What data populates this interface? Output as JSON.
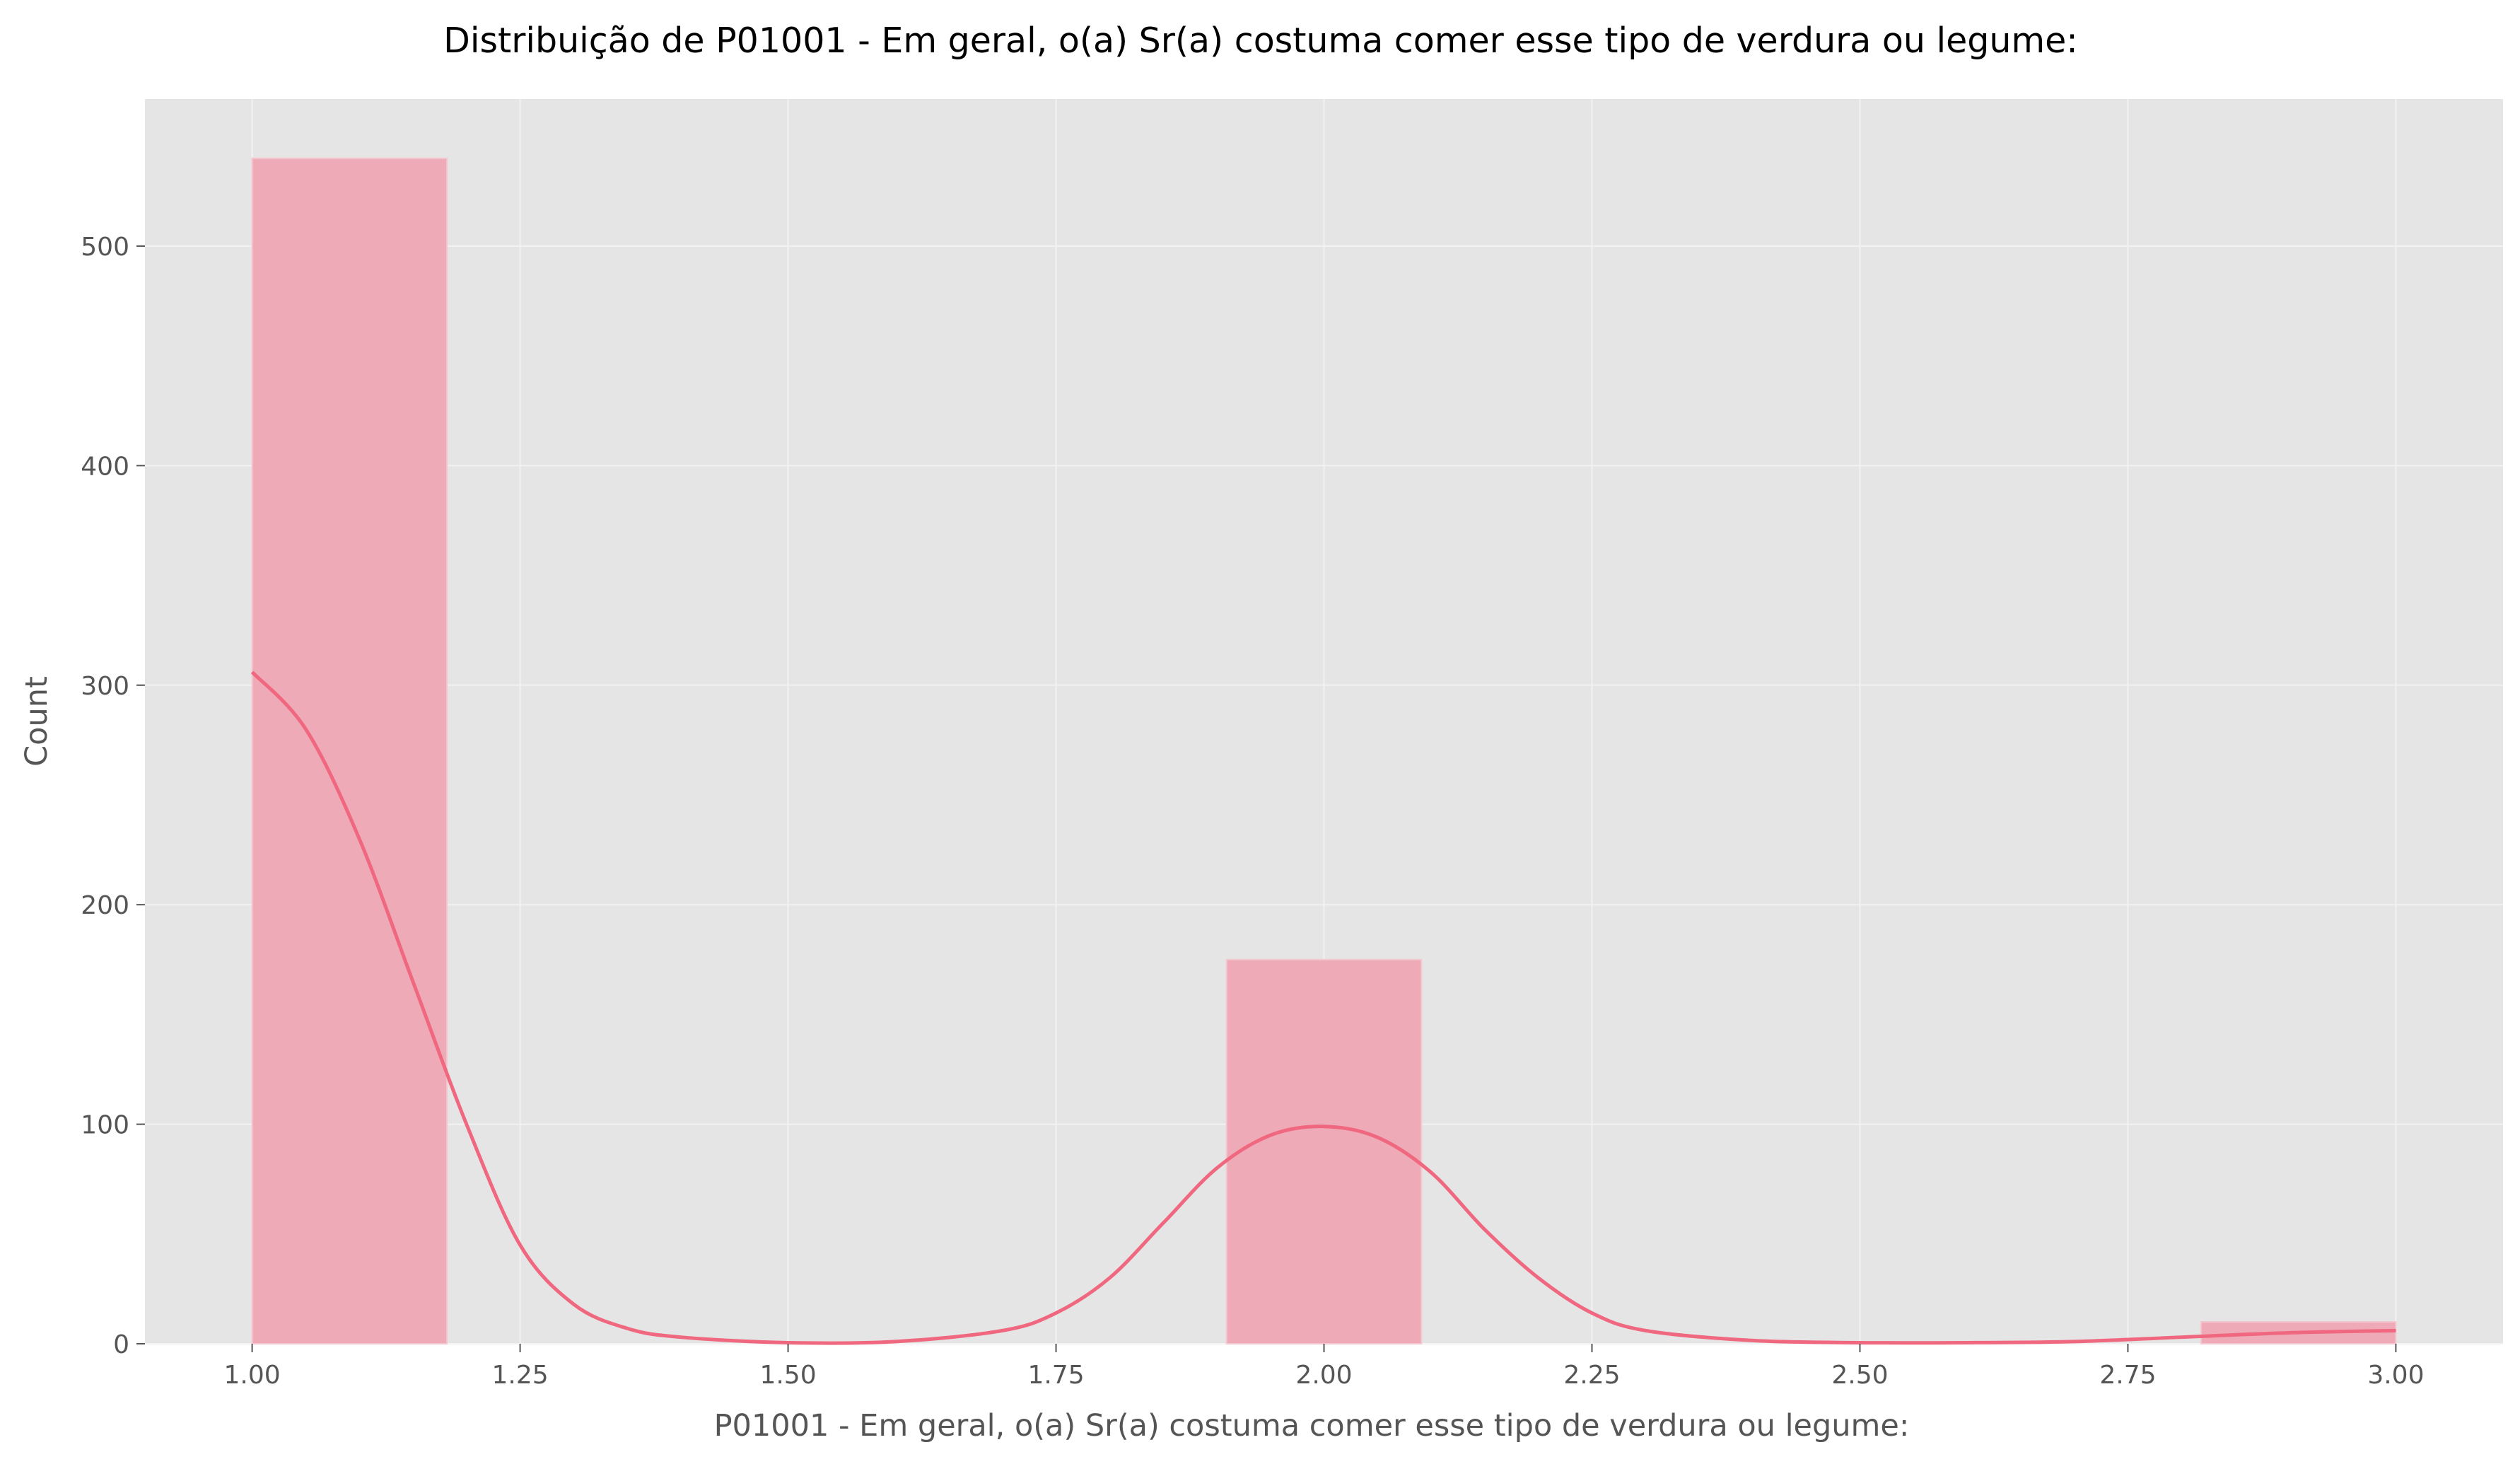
{
  "chart_data": {
    "type": "bar",
    "title": "Distribuição de P01001 - Em geral, o(a) Sr(a) costuma comer esse tipo de verdura ou legume:",
    "xlabel": "P01001 - Em geral, o(a) Sr(a) costuma comer esse tipo de verdura ou legume:",
    "ylabel": "Count",
    "xlim": [
      0.9,
      3.1
    ],
    "ylim": [
      0,
      567
    ],
    "x_ticks": [
      "1.00",
      "1.25",
      "1.50",
      "1.75",
      "2.00",
      "2.25",
      "2.50",
      "2.75",
      "3.00"
    ],
    "y_ticks": [
      "0",
      "100",
      "200",
      "300",
      "400",
      "500"
    ],
    "grid": true,
    "bars": [
      {
        "x_start": 1.0,
        "x_end": 1.1818,
        "count": 540
      },
      {
        "x_start": 1.9091,
        "x_end": 2.0909,
        "count": 175
      },
      {
        "x_start": 2.8182,
        "x_end": 3.0,
        "count": 10
      }
    ],
    "kde_curve": {
      "x": [
        1.0,
        1.05,
        1.1,
        1.15,
        1.2,
        1.25,
        1.3,
        1.35,
        1.4,
        1.5,
        1.6,
        1.7,
        1.75,
        1.8,
        1.85,
        1.9,
        1.95,
        2.0,
        2.05,
        2.1,
        2.15,
        2.2,
        2.25,
        2.3,
        2.4,
        2.5,
        2.6,
        2.7,
        2.8,
        2.9,
        3.0
      ],
      "y": [
        306,
        280,
        230,
        165,
        100,
        45,
        18,
        7,
        3,
        0.5,
        1,
        6,
        14,
        30,
        55,
        80,
        95,
        99,
        94,
        78,
        52,
        30,
        14,
        6,
        1.5,
        0.5,
        0.5,
        1,
        3,
        5,
        6
      ]
    },
    "colors": {
      "bar_fill": "#eeaab7",
      "bar_edge": "#f3c8d0",
      "kde_line": "#f0687f",
      "plot_background": "#e5e5e5",
      "grid": "#f2f2f2"
    }
  }
}
